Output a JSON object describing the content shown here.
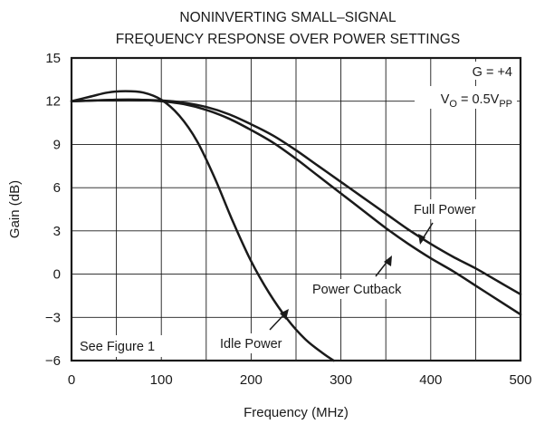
{
  "chart_data": {
    "type": "line",
    "title": [
      "NONINVERTING SMALL–SIGNAL",
      "FREQUENCY RESPONSE OVER POWER SETTINGS"
    ],
    "xlabel": "Frequency (MHz)",
    "ylabel": "Gain (dB)",
    "xlim": [
      0,
      500
    ],
    "ylim": [
      -6,
      15
    ],
    "x_ticks": [
      "0",
      "100",
      "200",
      "300",
      "400",
      "500"
    ],
    "y_ticks": [
      "15",
      "12",
      "9",
      "6",
      "3",
      "0",
      "−3",
      "−6"
    ],
    "grid": true,
    "annotations": {
      "gain": "G = +4",
      "vo_main": "V",
      "vo_sub1": "O",
      "vo_mid": " = 0.5V",
      "vo_sub2": "PP",
      "see_figure": "See Figure 1"
    },
    "series": [
      {
        "name": "Full Power",
        "x": [
          0,
          25,
          50,
          75,
          100,
          125,
          150,
          175,
          200,
          225,
          250,
          275,
          300,
          325,
          350,
          375,
          400,
          425,
          450,
          475,
          500
        ],
        "y": [
          12.0,
          12.05,
          12.1,
          12.1,
          12.05,
          11.9,
          11.6,
          11.1,
          10.4,
          9.6,
          8.6,
          7.5,
          6.4,
          5.3,
          4.2,
          3.1,
          2.1,
          1.2,
          0.4,
          -0.5,
          -1.4
        ]
      },
      {
        "name": "Power Cutback",
        "x": [
          0,
          25,
          50,
          75,
          100,
          125,
          150,
          175,
          200,
          225,
          250,
          275,
          300,
          325,
          350,
          375,
          400,
          425,
          450,
          475,
          500
        ],
        "y": [
          12.0,
          12.05,
          12.1,
          12.1,
          12.0,
          11.8,
          11.4,
          10.8,
          10.0,
          9.1,
          8.0,
          6.8,
          5.6,
          4.4,
          3.2,
          2.1,
          1.1,
          0.2,
          -0.8,
          -1.8,
          -2.8
        ]
      },
      {
        "name": "Idle Power",
        "x": [
          0,
          20,
          40,
          60,
          80,
          100,
          120,
          140,
          160,
          180,
          200,
          220,
          240,
          260,
          280,
          292
        ],
        "y": [
          12.0,
          12.3,
          12.6,
          12.7,
          12.6,
          12.1,
          11.0,
          9.2,
          6.6,
          3.6,
          0.9,
          -1.3,
          -3.1,
          -4.5,
          -5.5,
          -6.0
        ]
      }
    ],
    "series_labels": [
      {
        "text": "Full Power",
        "from": [
          395,
          3.1
        ],
        "to": [
          390,
          1.6
        ]
      },
      {
        "text": "Power Cutback",
        "from": [
          355,
          0.7
        ],
        "to": [
          360,
          0.8
        ]
      },
      {
        "text": "Idle Power",
        "from": [
          228,
          -4.3
        ],
        "to": [
          248,
          -2.2
        ]
      }
    ]
  }
}
